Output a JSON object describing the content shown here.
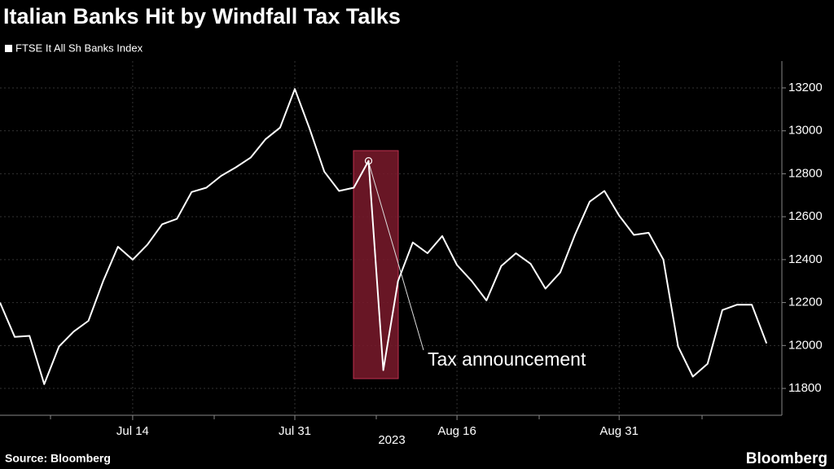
{
  "chart_data": {
    "type": "line",
    "title": "Italian Banks Hit by Windfall Tax Talks",
    "x_label": "2023",
    "source": "Source: Bloomberg",
    "brand": "Bloomberg",
    "annotation": "Tax announcement",
    "categories": [
      null,
      null,
      null,
      null,
      null,
      null,
      null,
      null,
      null,
      "Jul 14",
      null,
      null,
      null,
      null,
      null,
      null,
      null,
      null,
      null,
      null,
      "Jul 31",
      null,
      null,
      null,
      null,
      null,
      null,
      null,
      null,
      null,
      null,
      "Aug 16",
      null,
      null,
      null,
      null,
      null,
      null,
      null,
      null,
      null,
      null,
      "Aug 31",
      null,
      null,
      null,
      null,
      null,
      null,
      null,
      null,
      null,
      null
    ],
    "series": [
      {
        "name": "FTSE It All Sh Banks Index",
        "color": "#ffffff",
        "values": [
          12200,
          12040,
          12045,
          11820,
          11995,
          12065,
          12115,
          12300,
          12460,
          12400,
          12470,
          12565,
          12590,
          12715,
          12735,
          12790,
          12830,
          12875,
          12960,
          13015,
          13195,
          13010,
          12810,
          12720,
          12735,
          12860,
          11885,
          12300,
          12480,
          12430,
          12510,
          12375,
          12300,
          12210,
          12370,
          12430,
          12380,
          12265,
          12340,
          12515,
          12670,
          12720,
          12605,
          12515,
          12525,
          12400,
          11995,
          11855,
          11915,
          12165,
          12190,
          12190,
          12010
        ]
      }
    ],
    "ylim": [
      11675,
      13325
    ],
    "yticks": [
      11800,
      12000,
      12200,
      12400,
      12600,
      12800,
      13000,
      13200
    ],
    "grid": true
  }
}
